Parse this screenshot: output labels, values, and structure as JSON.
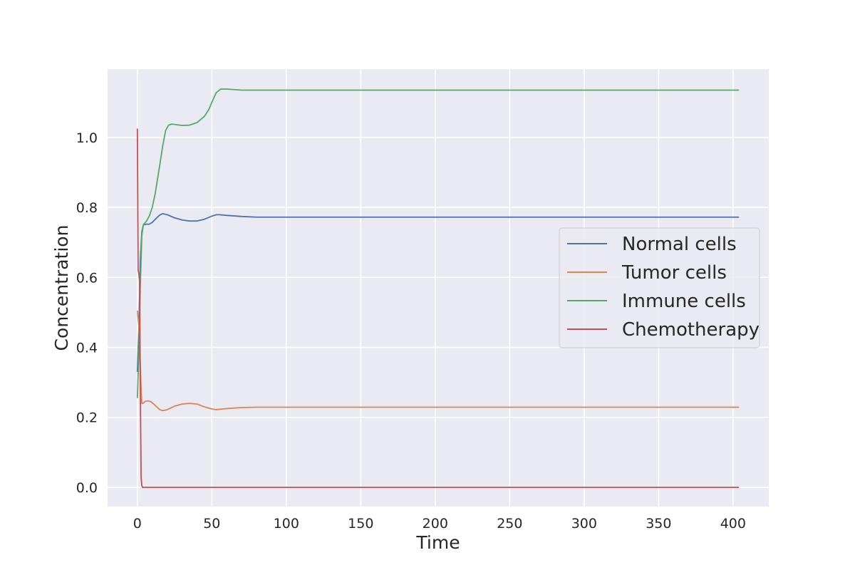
{
  "chart_data": {
    "type": "line",
    "title": "",
    "xlabel": "Time",
    "ylabel": "Concentration",
    "xlim": [
      -20,
      424
    ],
    "ylim": [
      -0.055,
      1.195
    ],
    "xticks": [
      0,
      50,
      100,
      150,
      200,
      250,
      300,
      350,
      400
    ],
    "xtick_labels": [
      "0",
      "50",
      "100",
      "150",
      "200",
      "250",
      "300",
      "350",
      "400"
    ],
    "yticks": [
      0.0,
      0.2,
      0.4,
      0.6,
      0.8,
      1.0
    ],
    "ytick_labels": [
      "0.0",
      "0.2",
      "0.4",
      "0.6",
      "0.8",
      "1.0"
    ],
    "grid": true,
    "background": "#eaeaf2",
    "legend_position": "center-right",
    "series": [
      {
        "name": "Normal cells",
        "color": "#4c72b0",
        "x": [
          0,
          1,
          2,
          3,
          4,
          6,
          8,
          10,
          12,
          15,
          17,
          20,
          25,
          30,
          35,
          40,
          45,
          50,
          53,
          55,
          60,
          70,
          80,
          100,
          150,
          200,
          300,
          404
        ],
        "y": [
          0.33,
          0.45,
          0.65,
          0.73,
          0.75,
          0.752,
          0.752,
          0.757,
          0.766,
          0.778,
          0.782,
          0.779,
          0.77,
          0.764,
          0.761,
          0.761,
          0.766,
          0.775,
          0.779,
          0.779,
          0.777,
          0.774,
          0.772,
          0.772,
          0.772,
          0.772,
          0.772,
          0.772
        ]
      },
      {
        "name": "Tumor cells",
        "color": "#dd8452",
        "x": [
          0,
          1,
          2,
          2.5,
          3,
          4,
          5,
          7,
          9,
          11,
          13,
          15,
          17,
          20,
          25,
          30,
          35,
          40,
          45,
          50,
          53,
          55,
          60,
          70,
          80,
          100,
          150,
          200,
          300,
          404
        ],
        "y": [
          0.505,
          0.46,
          0.35,
          0.28,
          0.24,
          0.24,
          0.245,
          0.247,
          0.245,
          0.238,
          0.23,
          0.222,
          0.219,
          0.222,
          0.232,
          0.238,
          0.24,
          0.238,
          0.23,
          0.224,
          0.222,
          0.223,
          0.225,
          0.228,
          0.229,
          0.229,
          0.229,
          0.229,
          0.229,
          0.229
        ]
      },
      {
        "name": "Immune cells",
        "color": "#55a868",
        "x": [
          0,
          1,
          2,
          3,
          4,
          6,
          8,
          10,
          12,
          15,
          17,
          19,
          21,
          23,
          25,
          30,
          35,
          40,
          45,
          48,
          50,
          53,
          56,
          60,
          70,
          80,
          100,
          150,
          200,
          300,
          404
        ],
        "y": [
          0.255,
          0.38,
          0.58,
          0.72,
          0.75,
          0.76,
          0.775,
          0.8,
          0.84,
          0.92,
          0.975,
          1.02,
          1.035,
          1.038,
          1.037,
          1.034,
          1.035,
          1.042,
          1.06,
          1.08,
          1.1,
          1.128,
          1.138,
          1.138,
          1.135,
          1.135,
          1.135,
          1.135,
          1.135,
          1.135,
          1.135
        ]
      },
      {
        "name": "Chemotherapy",
        "color": "#c44e52",
        "x": [
          0,
          0.5,
          1,
          1.5,
          2,
          2.5,
          3,
          3.5,
          4,
          5,
          10,
          50,
          100,
          200,
          300,
          404
        ],
        "y": [
          1.025,
          0.62,
          0.61,
          0.59,
          0.28,
          0.03,
          0.005,
          0.0,
          0.0,
          0.0,
          0.0,
          0.0,
          0.0,
          0.0,
          0.0,
          0.0
        ]
      }
    ]
  }
}
